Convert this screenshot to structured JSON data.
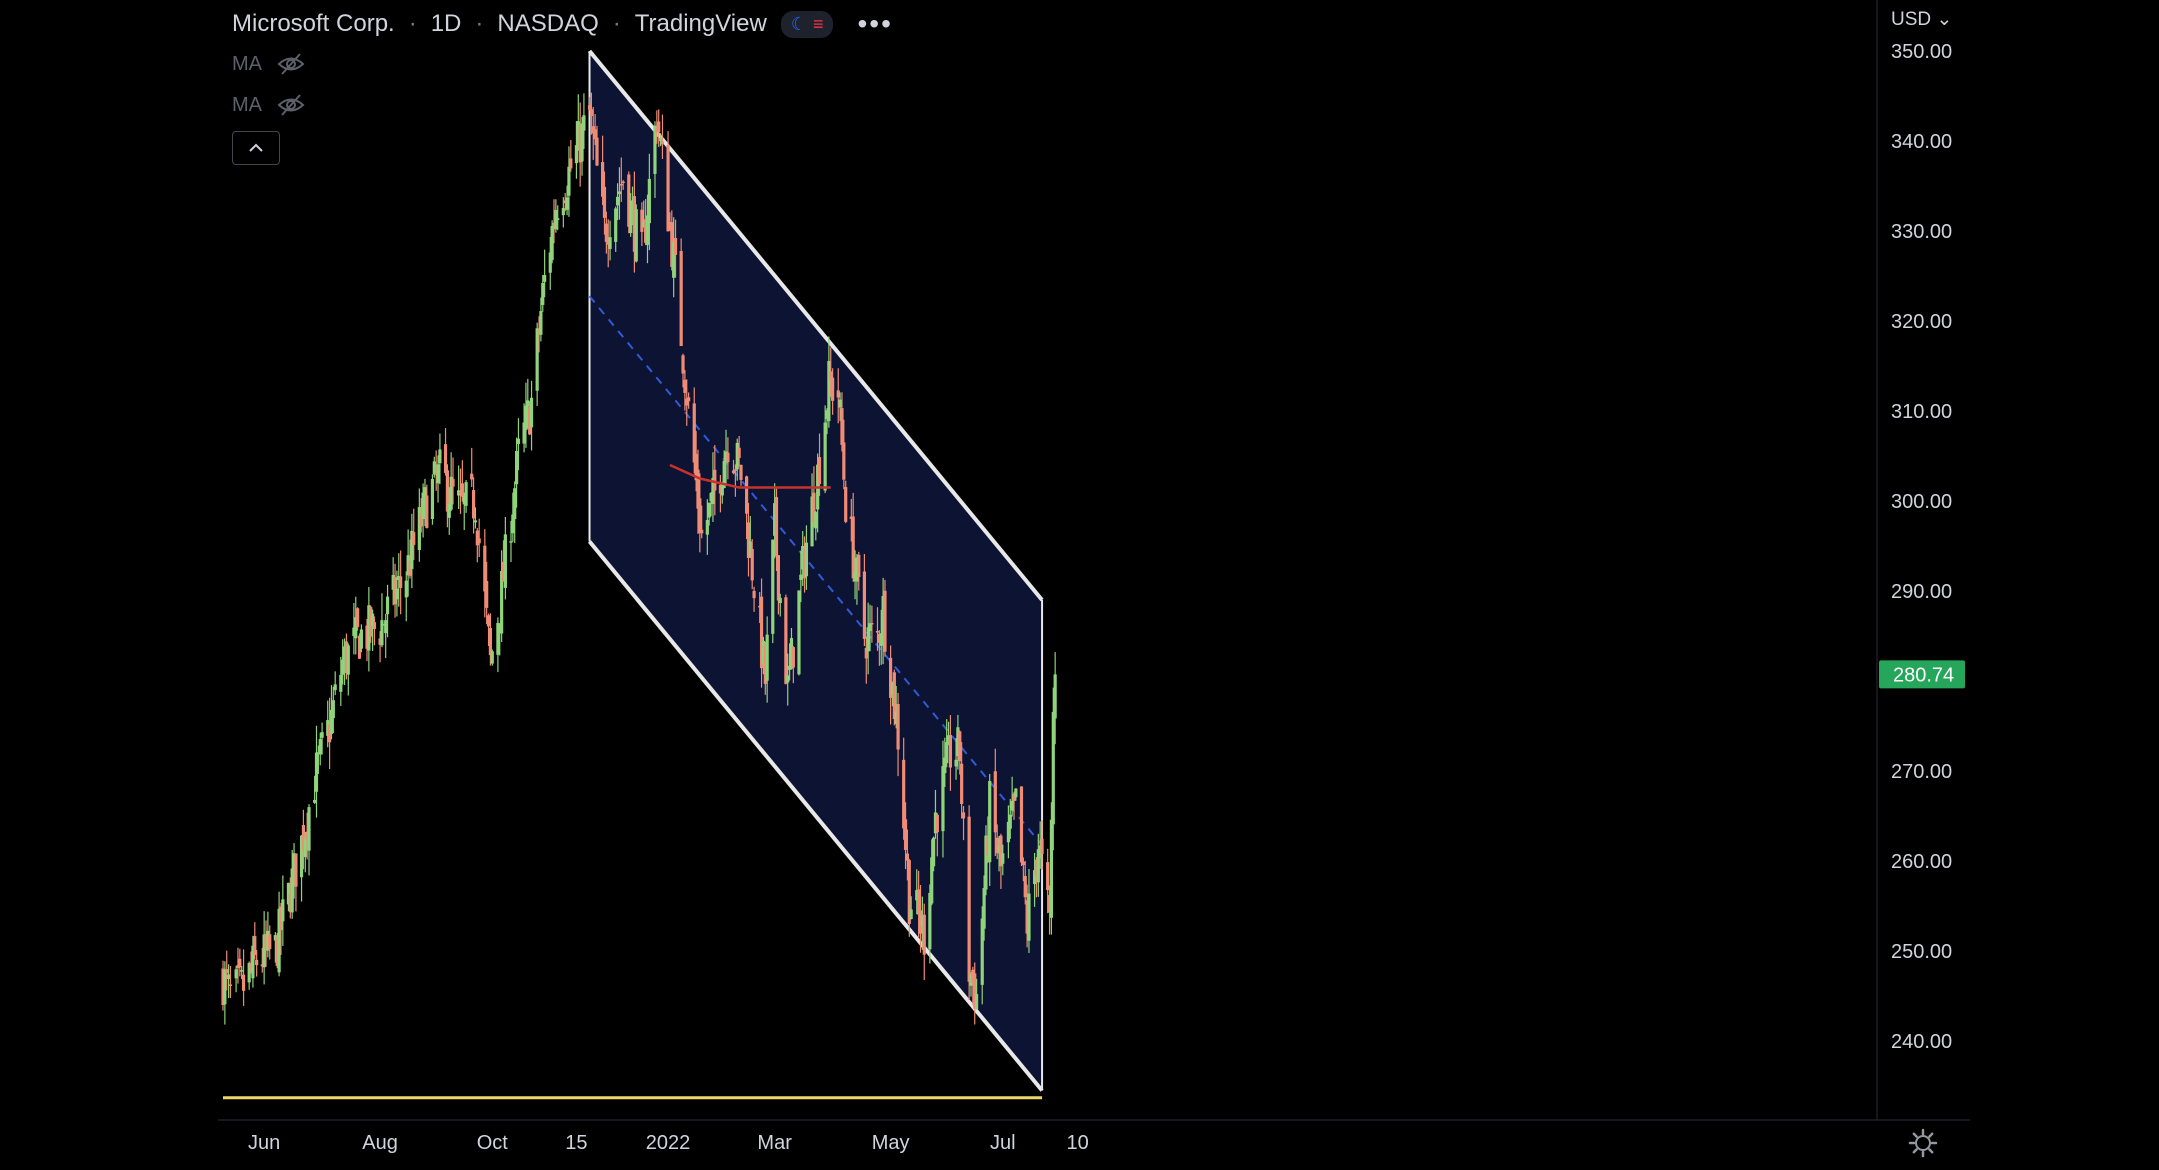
{
  "header": {
    "symbol_name": "Microsoft Corp.",
    "interval": "1D",
    "exchange": "NASDAQ",
    "source": "TradingView",
    "more_icon": "ellipsis-icon",
    "theme_icon": "moon-icon"
  },
  "indicators": [
    {
      "label": "MA",
      "visibility_icon": "eye-crossed-icon",
      "hidden": true
    },
    {
      "label": "MA",
      "visibility_icon": "eye-crossed-icon",
      "hidden": true
    }
  ],
  "collapse_icon": "chevron-up-icon",
  "price_axis": {
    "currency": "USD",
    "currency_caret": "⌄",
    "settings_icon": "gear-icon"
  },
  "colors": {
    "background": "#000000",
    "up_candle": "#8fd37a",
    "down_candle": "#f08c76",
    "channel_fill": "#0d1333",
    "channel_border": "#e8e8e8",
    "midline": "#2f5bd6",
    "horizontal_line": "#f0d56a",
    "red_line": "#c8322d",
    "last_price_badge": "#26a65b",
    "axis_text": "#d1d4dc"
  },
  "chart_data": {
    "type": "candlestick",
    "symbol": "Microsoft Corp.",
    "interval": "1D",
    "ylim": [
      232,
      354
    ],
    "grid": false,
    "y_ticks": [
      "240.00",
      "250.00",
      "260.00",
      "270.00",
      "280.00",
      "290.00",
      "300.00",
      "310.00",
      "320.00",
      "330.00",
      "340.00",
      "350.00"
    ],
    "x_ticks": [
      {
        "label": "Jun",
        "date": "2021-06-01"
      },
      {
        "label": "Aug",
        "date": "2021-08-02"
      },
      {
        "label": "Oct",
        "date": "2021-10-01"
      },
      {
        "label": "15",
        "date": "2021-11-15"
      },
      {
        "label": "2022",
        "date": "2022-01-03"
      },
      {
        "label": "Mar",
        "date": "2022-03-01"
      },
      {
        "label": "May",
        "date": "2022-05-02"
      },
      {
        "label": "Jul",
        "date": "2022-07-01"
      },
      {
        "label": "10",
        "date": "2022-08-10"
      }
    ],
    "last_price": "280.74",
    "close_path": [
      [
        "2021-05-10",
        247
      ],
      [
        "2021-05-14",
        245
      ],
      [
        "2021-05-21",
        246
      ],
      [
        "2021-05-28",
        249
      ],
      [
        "2021-06-07",
        250
      ],
      [
        "2021-06-14",
        256
      ],
      [
        "2021-06-21",
        262
      ],
      [
        "2021-06-28",
        269
      ],
      [
        "2021-07-06",
        275
      ],
      [
        "2021-07-13",
        282
      ],
      [
        "2021-07-22",
        285
      ],
      [
        "2021-08-02",
        286
      ],
      [
        "2021-08-16",
        292
      ],
      [
        "2021-08-27",
        300
      ],
      [
        "2021-09-03",
        303
      ],
      [
        "2021-09-14",
        299
      ],
      [
        "2021-09-22",
        300
      ],
      [
        "2021-09-30",
        282
      ],
      [
        "2021-10-06",
        290
      ],
      [
        "2021-10-15",
        305
      ],
      [
        "2021-10-22",
        311
      ],
      [
        "2021-10-28",
        323
      ],
      [
        "2021-11-04",
        333
      ],
      [
        "2021-11-12",
        337
      ],
      [
        "2021-11-22",
        343
      ],
      [
        "2021-11-30",
        330
      ],
      [
        "2021-12-10",
        336
      ],
      [
        "2021-12-20",
        327
      ],
      [
        "2021-12-28",
        343
      ],
      [
        "2022-01-07",
        325
      ],
      [
        "2022-01-14",
        310
      ],
      [
        "2022-01-21",
        296
      ],
      [
        "2022-01-27",
        300
      ],
      [
        "2022-02-04",
        307
      ],
      [
        "2022-02-11",
        303
      ],
      [
        "2022-02-18",
        291
      ],
      [
        "2022-02-24",
        280
      ],
      [
        "2022-03-01",
        297
      ],
      [
        "2022-03-08",
        279
      ],
      [
        "2022-03-17",
        294
      ],
      [
        "2022-03-24",
        303
      ],
      [
        "2022-03-30",
        313
      ],
      [
        "2022-04-04",
        312
      ],
      [
        "2022-04-08",
        300
      ],
      [
        "2022-04-18",
        285
      ],
      [
        "2022-04-25",
        285
      ],
      [
        "2022-04-28",
        288
      ],
      [
        "2022-05-06",
        274
      ],
      [
        "2022-05-12",
        256
      ],
      [
        "2022-05-20",
        252
      ],
      [
        "2022-05-26",
        265
      ],
      [
        "2022-06-03",
        272
      ],
      [
        "2022-06-08",
        272
      ],
      [
        "2022-06-13",
        248
      ],
      [
        "2022-06-17",
        245
      ],
      [
        "2022-06-24",
        266
      ],
      [
        "2022-06-30",
        259
      ],
      [
        "2022-07-08",
        266
      ],
      [
        "2022-07-14",
        253
      ],
      [
        "2022-07-20",
        262
      ],
      [
        "2022-07-26",
        253
      ],
      [
        "2022-07-28",
        276
      ],
      [
        "2022-07-29",
        280.74
      ]
    ],
    "channel": {
      "upper": [
        {
          "date": "2021-11-22",
          "price": 350
        },
        {
          "date": "2022-07-22",
          "price": 289
        }
      ],
      "lower": [
        {
          "date": "2021-11-22",
          "price": 295.5
        },
        {
          "date": "2022-07-22",
          "price": 234.5
        }
      ],
      "midline_style": "dashed"
    },
    "horizontal_line": {
      "price": 233.7,
      "from": "2021-05-10",
      "to": "2022-07-22"
    },
    "red_line": [
      {
        "date": "2022-01-04",
        "price": 304
      },
      {
        "date": "2022-01-20",
        "price": 302.5
      },
      {
        "date": "2022-02-10",
        "price": 301.5
      },
      {
        "date": "2022-03-07",
        "price": 301.5
      },
      {
        "date": "2022-03-31",
        "price": 301.5
      }
    ]
  }
}
